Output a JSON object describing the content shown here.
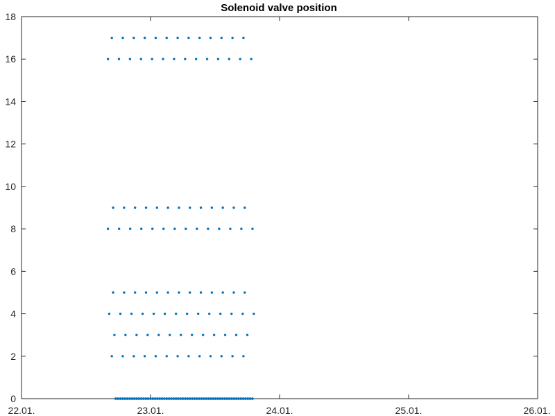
{
  "chart_data": {
    "type": "scatter",
    "title": "Solenoid valve position",
    "xlabel": "",
    "ylabel": "",
    "x_ticks": [
      "22.01.",
      "23.01.",
      "24.01.",
      "25.01.",
      "26.01."
    ],
    "y_ticks": [
      "0",
      "2",
      "4",
      "6",
      "8",
      "10",
      "12",
      "14",
      "16",
      "18"
    ],
    "xlim": [
      "22.01.",
      "26.01."
    ],
    "ylim": [
      0,
      18
    ],
    "grid": false,
    "marker_color": "#0072BD",
    "series": [
      {
        "rows": [
          {
            "y": 17,
            "x_start": 22.7,
            "x_end": 23.72,
            "count": 13
          },
          {
            "y": 16,
            "x_start": 22.67,
            "x_end": 23.78,
            "count": 14
          },
          {
            "y": 9,
            "x_start": 22.71,
            "x_end": 23.73,
            "count": 13
          },
          {
            "y": 8,
            "x_start": 22.67,
            "x_end": 23.79,
            "count": 14
          },
          {
            "y": 5,
            "x_start": 22.71,
            "x_end": 23.73,
            "count": 13
          },
          {
            "y": 4,
            "x_start": 22.68,
            "x_end": 23.8,
            "count": 14
          },
          {
            "y": 3,
            "x_start": 22.72,
            "x_end": 23.75,
            "count": 13
          },
          {
            "y": 2,
            "x_start": 22.7,
            "x_end": 23.72,
            "count": 13
          },
          {
            "y": 0,
            "x_start": 22.73,
            "x_end": 23.79,
            "count": 60
          }
        ]
      }
    ]
  }
}
